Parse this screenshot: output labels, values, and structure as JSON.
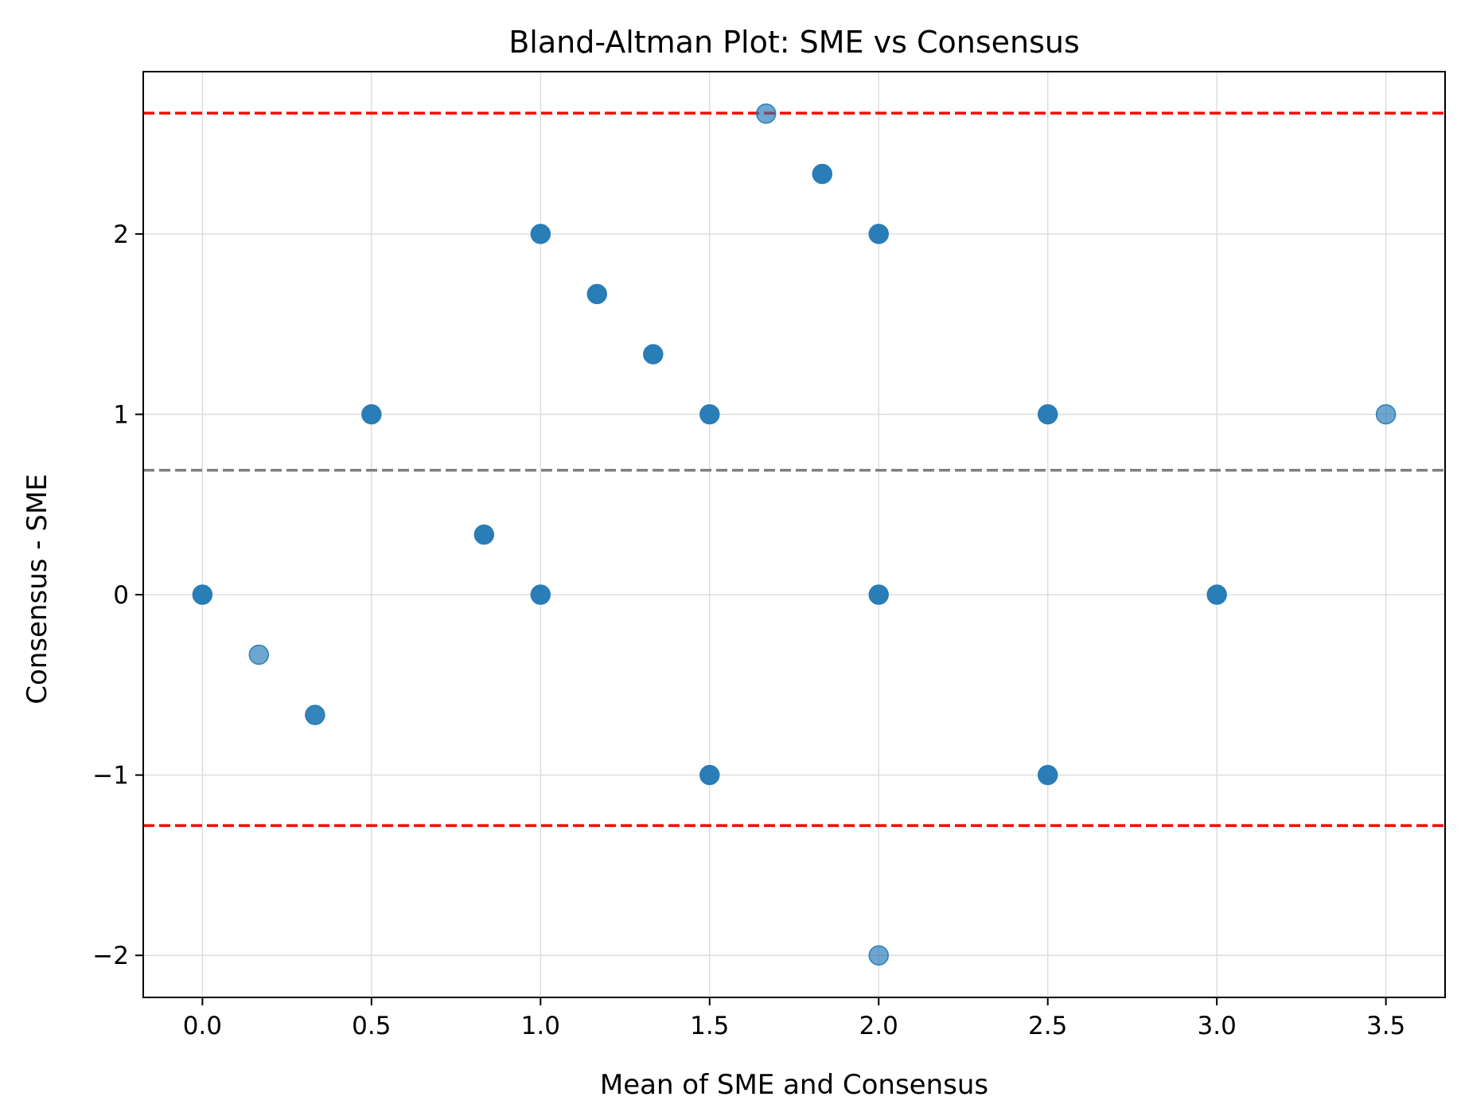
{
  "chart_data": {
    "type": "scatter",
    "title": "Bland-Altman Plot: SME vs Consensus",
    "xlabel": "Mean of SME and Consensus",
    "ylabel": "Consensus - SME",
    "xlim": [
      -0.175,
      3.675
    ],
    "ylim": [
      -2.233,
      2.9
    ],
    "xticks": [
      0.0,
      0.5,
      1.0,
      1.5,
      2.0,
      2.5,
      3.0,
      3.5
    ],
    "xtick_labels": [
      "0.0",
      "0.5",
      "1.0",
      "1.5",
      "2.0",
      "2.5",
      "3.0",
      "3.5"
    ],
    "yticks": [
      -2,
      -1,
      0,
      1,
      2
    ],
    "ytick_labels": [
      "−2",
      "−1",
      "0",
      "1",
      "2"
    ],
    "grid": true,
    "reference_lines": [
      {
        "y": 0.69,
        "style": "dashed",
        "color": "#808080"
      },
      {
        "y": 2.67,
        "style": "dashed",
        "color": "#ff0000"
      },
      {
        "y": -1.28,
        "style": "dashed",
        "color": "#ff0000"
      }
    ],
    "point_color": "#1f77b4",
    "points": [
      {
        "x": 0.0,
        "y": 0.0,
        "opacity": 0.95
      },
      {
        "x": 0.167,
        "y": -0.333,
        "opacity": 0.65
      },
      {
        "x": 0.333,
        "y": -0.667,
        "opacity": 0.9
      },
      {
        "x": 0.5,
        "y": 1.0,
        "opacity": 0.95
      },
      {
        "x": 0.833,
        "y": 0.333,
        "opacity": 0.95
      },
      {
        "x": 1.0,
        "y": 2.0,
        "opacity": 0.95
      },
      {
        "x": 1.0,
        "y": 0.0,
        "opacity": 0.95
      },
      {
        "x": 1.167,
        "y": 1.667,
        "opacity": 0.95
      },
      {
        "x": 1.333,
        "y": 1.333,
        "opacity": 0.95
      },
      {
        "x": 1.5,
        "y": 1.0,
        "opacity": 0.95
      },
      {
        "x": 1.5,
        "y": -1.0,
        "opacity": 0.95
      },
      {
        "x": 1.667,
        "y": 2.667,
        "opacity": 0.65
      },
      {
        "x": 1.833,
        "y": 2.333,
        "opacity": 0.95
      },
      {
        "x": 2.0,
        "y": 2.0,
        "opacity": 0.95
      },
      {
        "x": 2.0,
        "y": 0.0,
        "opacity": 0.95
      },
      {
        "x": 2.0,
        "y": -2.0,
        "opacity": 0.65
      },
      {
        "x": 2.5,
        "y": 1.0,
        "opacity": 0.95
      },
      {
        "x": 2.5,
        "y": -1.0,
        "opacity": 0.95
      },
      {
        "x": 3.0,
        "y": 0.0,
        "opacity": 0.95
      },
      {
        "x": 3.5,
        "y": 1.0,
        "opacity": 0.65
      }
    ]
  }
}
